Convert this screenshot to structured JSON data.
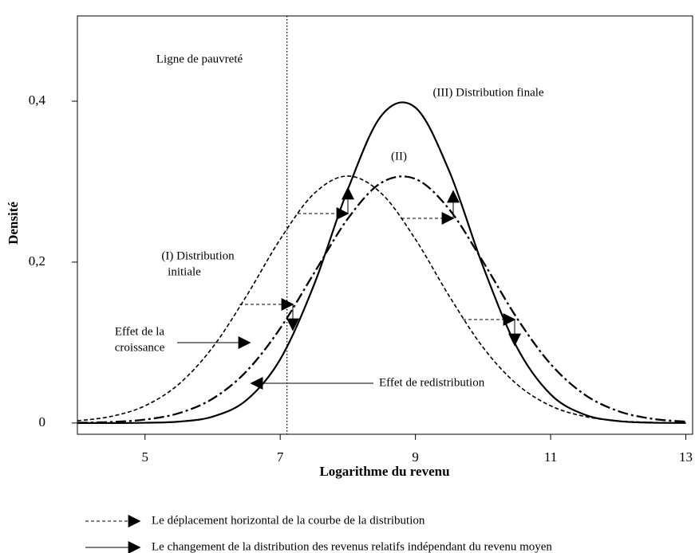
{
  "chart_data": {
    "type": "line",
    "x_label": "Logarithme du revenu",
    "y_label": "Densité",
    "x": [
      4,
      4.5,
      5,
      5.5,
      6,
      6.5,
      7,
      7.5,
      8,
      8.5,
      9,
      9.5,
      10,
      10.5,
      11,
      11.5,
      12,
      12.5,
      13
    ],
    "series": [
      {
        "color": "#000000",
        "style": "dashed",
        "values": [
          0.0027,
          0.0082,
          0.0214,
          0.0483,
          0.094,
          0.1578,
          0.2284,
          0.2851,
          0.307,
          0.2851,
          0.2284,
          0.1578,
          0.094,
          0.0483,
          0.0214,
          0.0082,
          0.0027,
          0.0008,
          0.0002
        ]
      },
      {
        "color": "#000000",
        "style": "dashdot",
        "values": [
          0.0003,
          0.0013,
          0.0043,
          0.0122,
          0.0302,
          0.0642,
          0.1177,
          0.1862,
          0.254,
          0.2989,
          0.3034,
          0.2656,
          0.2005,
          0.1306,
          0.0733,
          0.0355,
          0.0148,
          0.0053,
          0.0017
        ]
      },
      {
        "color": "#000000",
        "style": "solid",
        "values": [
          0,
          0,
          0.0003,
          0.0017,
          0.0079,
          0.0284,
          0.0792,
          0.1718,
          0.2904,
          0.3824,
          0.3921,
          0.3131,
          0.1947,
          0.0943,
          0.0356,
          0.0105,
          0.0024,
          0.0004,
          0.0001
        ]
      }
    ],
    "xlim": [
      4,
      13.1
    ],
    "ylim": [
      -0.014,
      0.506
    ],
    "xticks": [
      5,
      7,
      9,
      11,
      13
    ],
    "yticks": [
      {
        "value": 0,
        "label": "0"
      },
      {
        "value": 0.2,
        "label": "0,2"
      },
      {
        "value": 0.4,
        "label": "0,4"
      }
    ],
    "poverty_line": 7.1,
    "annotations": [
      {
        "lines": [
          "Ligne de pauvreté"
        ]
      },
      {
        "lines": [
          "(III) Distribution finale"
        ]
      },
      {
        "lines": [
          "(II)"
        ]
      },
      {
        "lines": [
          "(I) Distribution",
          "initiale"
        ]
      },
      {
        "lines": [
          "Effet de la",
          "croissance"
        ]
      },
      {
        "lines": [
          "Effet de redistribution"
        ]
      }
    ],
    "notes": [
      "Le déplacement horizontal de la courbe de la distribution",
      "Le changement de la distribution des revenus relatifs indépendant du revenu moyen"
    ]
  }
}
